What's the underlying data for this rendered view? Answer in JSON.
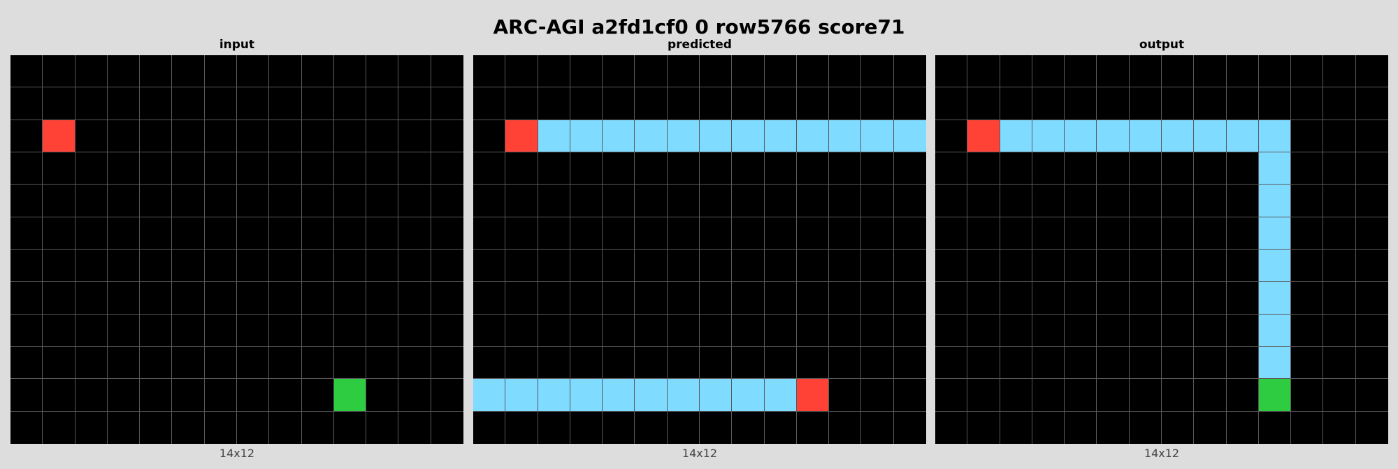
{
  "title": "ARC-AGI a2fd1cf0 0 row5766 score71",
  "palette": {
    "0": "#000000",
    "2": "#ff4136",
    "3": "#2ecc40",
    "8": "#7fdbff"
  },
  "panels": [
    {
      "label": "input",
      "dims": "14x12",
      "rows": 12,
      "cols": 14,
      "grid": [
        [
          0,
          0,
          0,
          0,
          0,
          0,
          0,
          0,
          0,
          0,
          0,
          0,
          0,
          0
        ],
        [
          0,
          0,
          0,
          0,
          0,
          0,
          0,
          0,
          0,
          0,
          0,
          0,
          0,
          0
        ],
        [
          0,
          2,
          0,
          0,
          0,
          0,
          0,
          0,
          0,
          0,
          0,
          0,
          0,
          0
        ],
        [
          0,
          0,
          0,
          0,
          0,
          0,
          0,
          0,
          0,
          0,
          0,
          0,
          0,
          0
        ],
        [
          0,
          0,
          0,
          0,
          0,
          0,
          0,
          0,
          0,
          0,
          0,
          0,
          0,
          0
        ],
        [
          0,
          0,
          0,
          0,
          0,
          0,
          0,
          0,
          0,
          0,
          0,
          0,
          0,
          0
        ],
        [
          0,
          0,
          0,
          0,
          0,
          0,
          0,
          0,
          0,
          0,
          0,
          0,
          0,
          0
        ],
        [
          0,
          0,
          0,
          0,
          0,
          0,
          0,
          0,
          0,
          0,
          0,
          0,
          0,
          0
        ],
        [
          0,
          0,
          0,
          0,
          0,
          0,
          0,
          0,
          0,
          0,
          0,
          0,
          0,
          0
        ],
        [
          0,
          0,
          0,
          0,
          0,
          0,
          0,
          0,
          0,
          0,
          0,
          0,
          0,
          0
        ],
        [
          0,
          0,
          0,
          0,
          0,
          0,
          0,
          0,
          0,
          0,
          3,
          0,
          0,
          0
        ],
        [
          0,
          0,
          0,
          0,
          0,
          0,
          0,
          0,
          0,
          0,
          0,
          0,
          0,
          0
        ]
      ]
    },
    {
      "label": "predicted",
      "dims": "14x12",
      "rows": 12,
      "cols": 14,
      "grid": [
        [
          0,
          0,
          0,
          0,
          0,
          0,
          0,
          0,
          0,
          0,
          0,
          0,
          0,
          0
        ],
        [
          0,
          0,
          0,
          0,
          0,
          0,
          0,
          0,
          0,
          0,
          0,
          0,
          0,
          0
        ],
        [
          0,
          2,
          8,
          8,
          8,
          8,
          8,
          8,
          8,
          8,
          8,
          8,
          8,
          8
        ],
        [
          0,
          0,
          0,
          0,
          0,
          0,
          0,
          0,
          0,
          0,
          0,
          0,
          0,
          0
        ],
        [
          0,
          0,
          0,
          0,
          0,
          0,
          0,
          0,
          0,
          0,
          0,
          0,
          0,
          0
        ],
        [
          0,
          0,
          0,
          0,
          0,
          0,
          0,
          0,
          0,
          0,
          0,
          0,
          0,
          0
        ],
        [
          0,
          0,
          0,
          0,
          0,
          0,
          0,
          0,
          0,
          0,
          0,
          0,
          0,
          0
        ],
        [
          0,
          0,
          0,
          0,
          0,
          0,
          0,
          0,
          0,
          0,
          0,
          0,
          0,
          0
        ],
        [
          0,
          0,
          0,
          0,
          0,
          0,
          0,
          0,
          0,
          0,
          0,
          0,
          0,
          0
        ],
        [
          0,
          0,
          0,
          0,
          0,
          0,
          0,
          0,
          0,
          0,
          0,
          0,
          0,
          0
        ],
        [
          8,
          8,
          8,
          8,
          8,
          8,
          8,
          8,
          8,
          8,
          2,
          0,
          0,
          0
        ],
        [
          0,
          0,
          0,
          0,
          0,
          0,
          0,
          0,
          0,
          0,
          0,
          0,
          0,
          0
        ]
      ]
    },
    {
      "label": "output",
      "dims": "14x12",
      "rows": 12,
      "cols": 14,
      "grid": [
        [
          0,
          0,
          0,
          0,
          0,
          0,
          0,
          0,
          0,
          0,
          0,
          0,
          0,
          0
        ],
        [
          0,
          0,
          0,
          0,
          0,
          0,
          0,
          0,
          0,
          0,
          0,
          0,
          0,
          0
        ],
        [
          0,
          2,
          8,
          8,
          8,
          8,
          8,
          8,
          8,
          8,
          8,
          0,
          0,
          0
        ],
        [
          0,
          0,
          0,
          0,
          0,
          0,
          0,
          0,
          0,
          0,
          8,
          0,
          0,
          0
        ],
        [
          0,
          0,
          0,
          0,
          0,
          0,
          0,
          0,
          0,
          0,
          8,
          0,
          0,
          0
        ],
        [
          0,
          0,
          0,
          0,
          0,
          0,
          0,
          0,
          0,
          0,
          8,
          0,
          0,
          0
        ],
        [
          0,
          0,
          0,
          0,
          0,
          0,
          0,
          0,
          0,
          0,
          8,
          0,
          0,
          0
        ],
        [
          0,
          0,
          0,
          0,
          0,
          0,
          0,
          0,
          0,
          0,
          8,
          0,
          0,
          0
        ],
        [
          0,
          0,
          0,
          0,
          0,
          0,
          0,
          0,
          0,
          0,
          8,
          0,
          0,
          0
        ],
        [
          0,
          0,
          0,
          0,
          0,
          0,
          0,
          0,
          0,
          0,
          8,
          0,
          0,
          0
        ],
        [
          0,
          0,
          0,
          0,
          0,
          0,
          0,
          0,
          0,
          0,
          3,
          0,
          0,
          0
        ],
        [
          0,
          0,
          0,
          0,
          0,
          0,
          0,
          0,
          0,
          0,
          0,
          0,
          0,
          0
        ]
      ]
    }
  ]
}
